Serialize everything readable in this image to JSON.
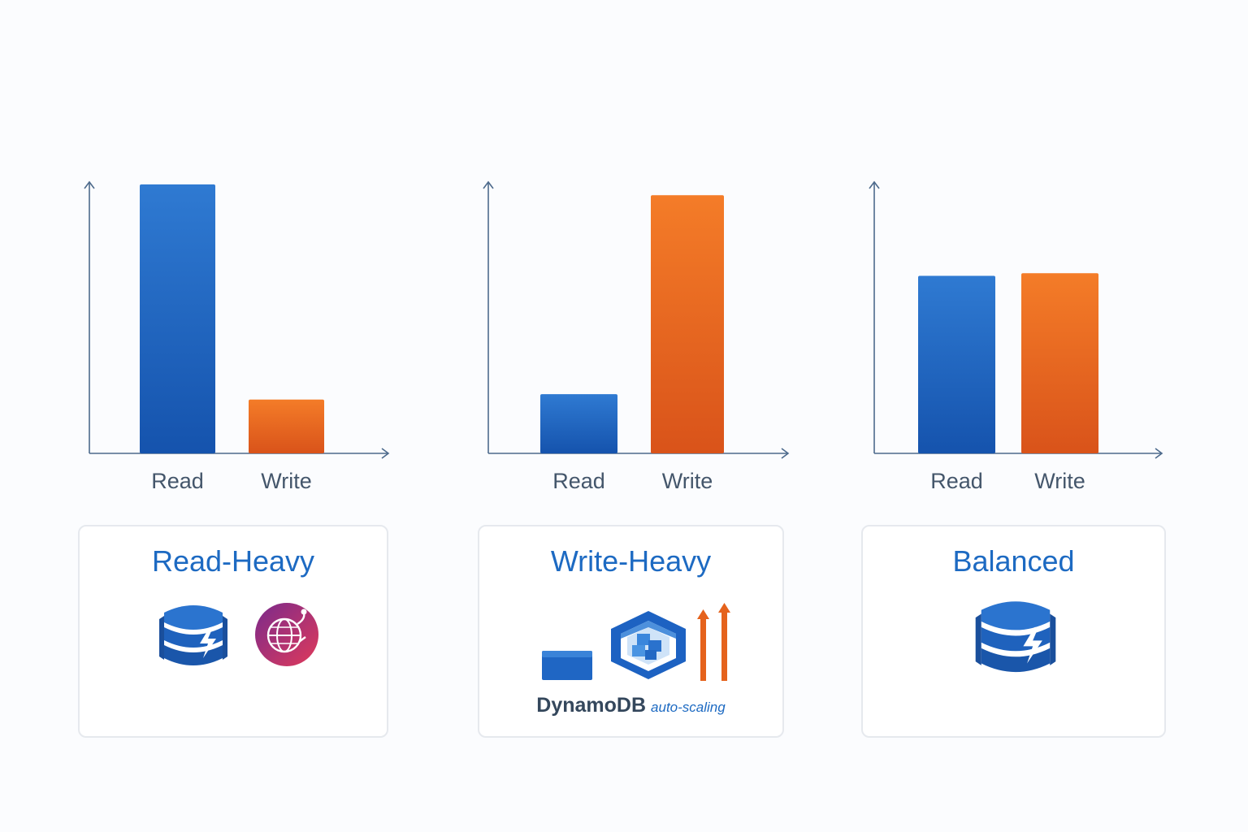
{
  "chart_data": [
    {
      "type": "bar",
      "categories": [
        "Read",
        "Write"
      ],
      "values": [
        100,
        20
      ],
      "title": "",
      "xlabel": "",
      "ylabel": "",
      "ylim": [
        0,
        100
      ]
    },
    {
      "type": "bar",
      "categories": [
        "Read",
        "Write"
      ],
      "values": [
        22,
        96
      ],
      "title": "",
      "xlabel": "",
      "ylabel": "",
      "ylim": [
        0,
        100
      ]
    },
    {
      "type": "bar",
      "categories": [
        "Read",
        "Write"
      ],
      "values": [
        66,
        67
      ],
      "title": "",
      "xlabel": "",
      "ylabel": "",
      "ylim": [
        0,
        100
      ]
    }
  ],
  "colors": {
    "read": "#1e64c0",
    "write": "#e8641f",
    "title": "#1d6ac2"
  },
  "cards": [
    {
      "title": "Read-Heavy",
      "icons": [
        "dynamodb-icon",
        "dax-accelerator-icon"
      ]
    },
    {
      "title": "Write-Heavy",
      "icons": [
        "capacity-bar-icon",
        "dynamodb-cube-icon",
        "scale-up-arrows-icon"
      ],
      "caption_main": "DynamoDB",
      "caption_sub": "auto-scaling"
    },
    {
      "title": "Balanced",
      "icons": [
        "dynamodb-icon"
      ]
    }
  ]
}
